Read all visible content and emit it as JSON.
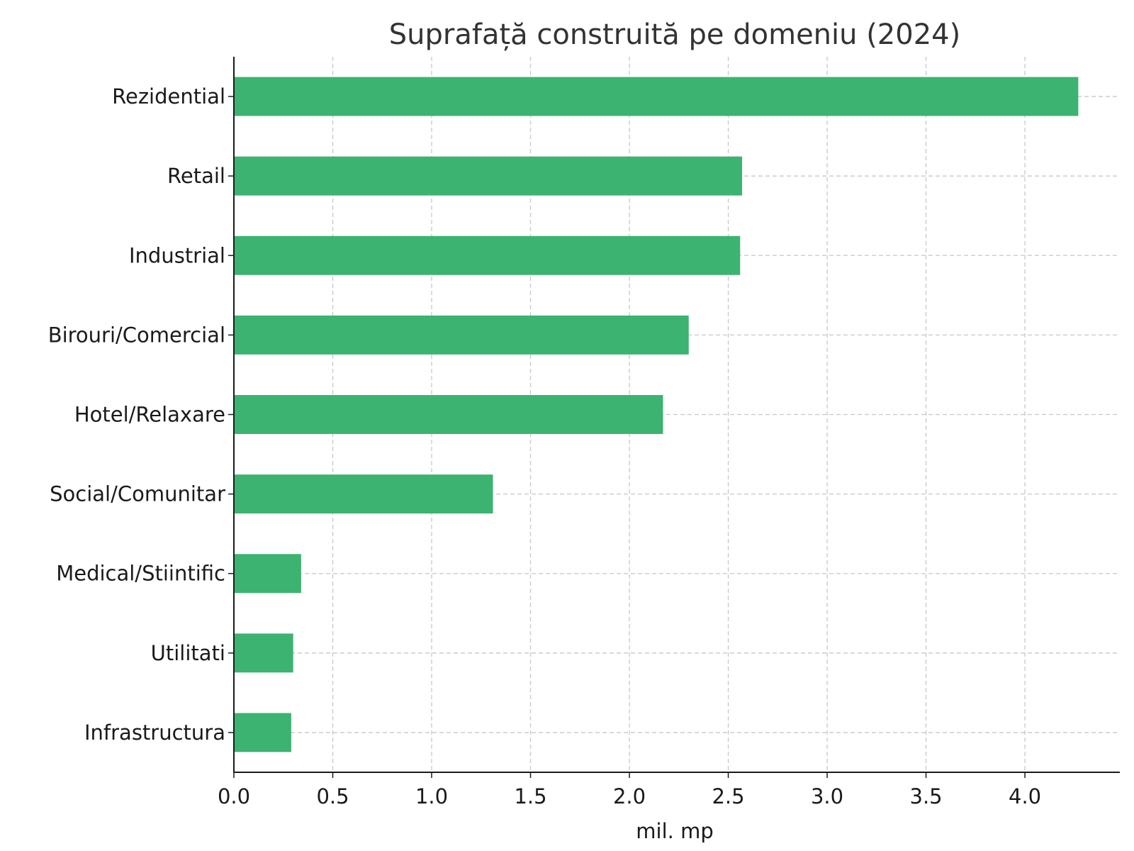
{
  "chart_data": {
    "type": "bar",
    "orientation": "horizontal",
    "title": "Suprafață construită pe domeniu (2024)",
    "xlabel": "mil. mp",
    "ylabel": "",
    "categories": [
      "Rezidential",
      "Retail",
      "Industrial",
      "Birouri/Comercial",
      "Hotel/Relaxare",
      "Social/Comunitar",
      "Medical/Stiintific",
      "Utilitati",
      "Infrastructura"
    ],
    "values": [
      4.27,
      2.57,
      2.56,
      2.3,
      2.17,
      1.31,
      0.34,
      0.3,
      0.29
    ],
    "xlim": [
      0,
      4.48
    ],
    "xticks": [
      "0.0",
      "0.5",
      "1.0",
      "1.5",
      "2.0",
      "2.5",
      "3.0",
      "3.5",
      "4.0"
    ],
    "bar_color": "#3cb371",
    "grid": true,
    "legend": "none"
  }
}
